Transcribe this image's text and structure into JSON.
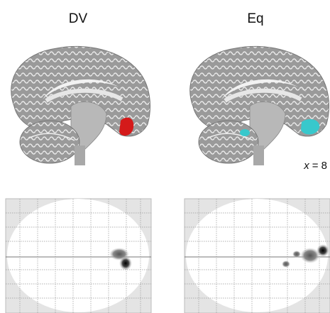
{
  "panels": [
    {
      "label": "DV"
    },
    {
      "label": "Eq"
    }
  ],
  "annotation": {
    "variable": "x",
    "text": "= 8"
  }
}
